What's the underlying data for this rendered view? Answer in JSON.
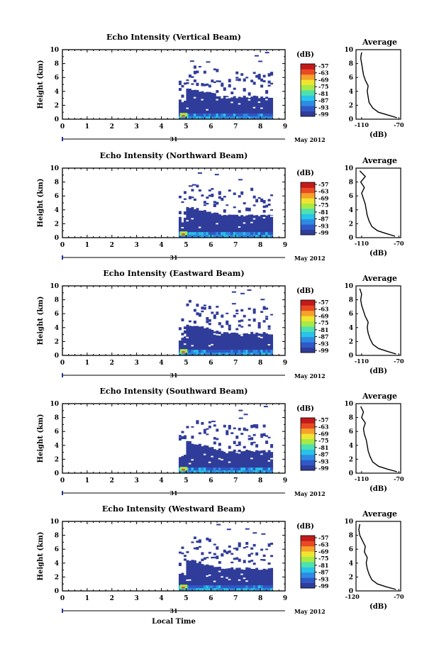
{
  "common": {
    "ylabel": "Height (km)",
    "colorbar_unit": "(dB)",
    "colorbar_ticks": [
      "-57",
      "-63",
      "-69",
      "-75",
      "-81",
      "-87",
      "-93",
      "-99"
    ],
    "xticks": [
      "0",
      "1",
      "2",
      "3",
      "4",
      "5",
      "6",
      "7",
      "8",
      "9"
    ],
    "yticks": [
      "0",
      "2",
      "4",
      "6",
      "8",
      "10"
    ],
    "date_day": "31",
    "date_month": "May 2012",
    "avg_title": "Average",
    "avg_unit": "(dB)",
    "xlabel": "Local Time"
  },
  "chart_data": [
    {
      "type": "heatmap",
      "title": "Echo Intensity (Vertical Beam)",
      "xlim": [
        0,
        9
      ],
      "ylim": [
        0,
        10
      ],
      "data_start_hour": 4.7,
      "data_end_hour": 8.5,
      "avg_xticks": [
        "-110",
        "-70"
      ],
      "average_profile": [
        {
          "h": 0.2,
          "db": -72
        },
        {
          "h": 0.6,
          "db": -82
        },
        {
          "h": 1.0,
          "db": -92
        },
        {
          "h": 1.6,
          "db": -98
        },
        {
          "h": 2.4,
          "db": -102
        },
        {
          "h": 3.2,
          "db": -103
        },
        {
          "h": 4.0,
          "db": -104
        },
        {
          "h": 4.8,
          "db": -103
        },
        {
          "h": 5.6,
          "db": -106
        },
        {
          "h": 6.4,
          "db": -108
        },
        {
          "h": 7.2,
          "db": -109
        },
        {
          "h": 8.0,
          "db": -110
        },
        {
          "h": 8.8,
          "db": -111
        },
        {
          "h": 9.6,
          "db": -110
        }
      ]
    },
    {
      "type": "heatmap",
      "title": "Echo Intensity (Northward Beam)",
      "xlim": [
        0,
        9
      ],
      "ylim": [
        0,
        10
      ],
      "data_start_hour": 4.7,
      "data_end_hour": 8.5,
      "avg_xticks": [
        "-110",
        "-70"
      ],
      "average_profile": [
        {
          "h": 0.2,
          "db": -74
        },
        {
          "h": 0.6,
          "db": -84
        },
        {
          "h": 1.0,
          "db": -93
        },
        {
          "h": 1.6,
          "db": -99
        },
        {
          "h": 2.4,
          "db": -102
        },
        {
          "h": 3.2,
          "db": -104
        },
        {
          "h": 4.0,
          "db": -105
        },
        {
          "h": 4.8,
          "db": -106
        },
        {
          "h": 5.6,
          "db": -108
        },
        {
          "h": 6.4,
          "db": -110
        },
        {
          "h": 7.2,
          "db": -107
        },
        {
          "h": 8.0,
          "db": -111
        },
        {
          "h": 8.8,
          "db": -106
        },
        {
          "h": 9.6,
          "db": -112
        }
      ]
    },
    {
      "type": "heatmap",
      "title": "Echo Intensity (Eastward Beam)",
      "xlim": [
        0,
        9
      ],
      "ylim": [
        0,
        10
      ],
      "data_start_hour": 4.7,
      "data_end_hour": 8.5,
      "avg_xticks": [
        "-110",
        "-70"
      ],
      "average_profile": [
        {
          "h": 0.2,
          "db": -73
        },
        {
          "h": 0.6,
          "db": -83
        },
        {
          "h": 1.0,
          "db": -92
        },
        {
          "h": 1.6,
          "db": -98
        },
        {
          "h": 2.4,
          "db": -101
        },
        {
          "h": 3.2,
          "db": -103
        },
        {
          "h": 4.0,
          "db": -104
        },
        {
          "h": 4.8,
          "db": -103
        },
        {
          "h": 5.6,
          "db": -106
        },
        {
          "h": 6.4,
          "db": -108
        },
        {
          "h": 7.2,
          "db": -110
        },
        {
          "h": 8.0,
          "db": -111
        },
        {
          "h": 8.8,
          "db": -110
        },
        {
          "h": 9.6,
          "db": -112
        }
      ]
    },
    {
      "type": "heatmap",
      "title": "Echo Intensity (Southward Beam)",
      "xlim": [
        0,
        9
      ],
      "ylim": [
        0,
        10
      ],
      "data_start_hour": 4.7,
      "data_end_hour": 8.5,
      "avg_xticks": [
        "-110",
        "-70"
      ],
      "average_profile": [
        {
          "h": 0.2,
          "db": -72
        },
        {
          "h": 0.6,
          "db": -83
        },
        {
          "h": 1.0,
          "db": -92
        },
        {
          "h": 1.6,
          "db": -98
        },
        {
          "h": 2.4,
          "db": -101
        },
        {
          "h": 3.2,
          "db": -103
        },
        {
          "h": 4.0,
          "db": -104
        },
        {
          "h": 4.8,
          "db": -105
        },
        {
          "h": 5.6,
          "db": -107
        },
        {
          "h": 6.4,
          "db": -108
        },
        {
          "h": 7.2,
          "db": -106
        },
        {
          "h": 8.0,
          "db": -110
        },
        {
          "h": 8.8,
          "db": -108
        },
        {
          "h": 9.6,
          "db": -111
        }
      ]
    },
    {
      "type": "heatmap",
      "title": "Echo Intensity (Westward Beam)",
      "xlim": [
        0,
        9
      ],
      "ylim": [
        0,
        10
      ],
      "data_start_hour": 4.7,
      "data_end_hour": 8.5,
      "avg_xticks": [
        "-120",
        "-70"
      ],
      "average_profile": [
        {
          "h": 0.2,
          "db": -73
        },
        {
          "h": 0.6,
          "db": -84
        },
        {
          "h": 1.0,
          "db": -93
        },
        {
          "h": 1.6,
          "db": -99
        },
        {
          "h": 2.4,
          "db": -102
        },
        {
          "h": 3.2,
          "db": -104
        },
        {
          "h": 4.0,
          "db": -105
        },
        {
          "h": 4.8,
          "db": -104
        },
        {
          "h": 5.6,
          "db": -107
        },
        {
          "h": 6.4,
          "db": -106
        },
        {
          "h": 7.2,
          "db": -109
        },
        {
          "h": 8.0,
          "db": -112
        },
        {
          "h": 8.8,
          "db": -113
        },
        {
          "h": 9.6,
          "db": -112
        }
      ]
    }
  ],
  "colors": {
    "colorbar": [
      "#303c9a",
      "#2f59c7",
      "#2e8be4",
      "#28c3e8",
      "#4ee1b0",
      "#a6ea46",
      "#f0e430",
      "#f5a12a",
      "#e94a23",
      "#c21a1a"
    ],
    "field_base": "#303c9a"
  }
}
